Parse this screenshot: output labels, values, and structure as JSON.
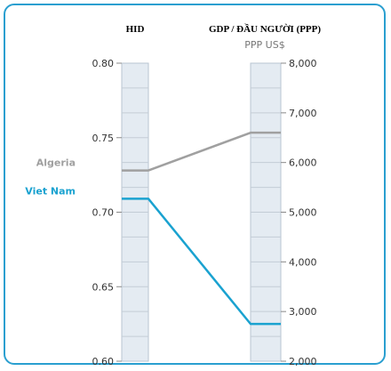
{
  "chart_data": {
    "type": "line",
    "left_axis": {
      "title": "HID",
      "ylim": [
        0.6,
        0.8
      ],
      "ticks": [
        "0.60",
        "0.65",
        "0.70",
        "0.75",
        "0.80"
      ]
    },
    "right_axis": {
      "title": "GDP / ĐẦU NGƯỜI (PPP)",
      "unit": "PPP US$",
      "ylim": [
        2000,
        8000
      ],
      "ticks": [
        "2,000",
        "3,000",
        "4,000",
        "5,000",
        "6,000",
        "7,000",
        "8,000"
      ]
    },
    "series": [
      {
        "name": "Algeria",
        "color": "#a0a0a0",
        "hid": 0.728,
        "gdp": 6600
      },
      {
        "name": "Viet Nam",
        "color": "#1aa2d0",
        "hid": 0.709,
        "gdp": 2750
      }
    ],
    "grid": true
  }
}
